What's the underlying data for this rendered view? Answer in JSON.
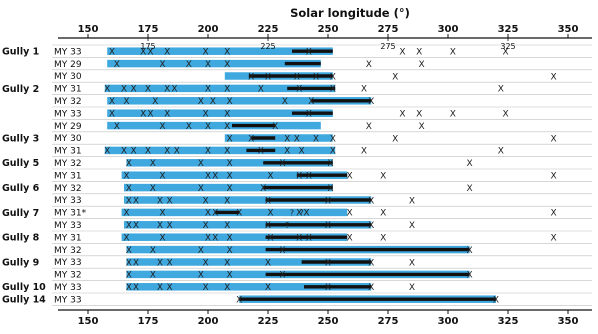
{
  "chart_data": {
    "type": "gantt",
    "title": "Solar longitude (°)",
    "xlim": [
      150,
      360
    ],
    "major_ticks": [
      "150",
      "175",
      "200",
      "225",
      "250",
      "275",
      "300",
      "325",
      "350"
    ],
    "minor_ticks": [
      "175",
      "225",
      "275",
      "325"
    ],
    "colors": {
      "monitoring": "#3fa8df",
      "activity": "#111111",
      "grid": "#bfbfbf",
      "axis": "#111111"
    },
    "rows": [
      {
        "gully": "Gully 1",
        "my": "MY 33",
        "blue": [
          158,
          252
        ],
        "black": [
          235,
          252
        ],
        "x": [
          160,
          173,
          176,
          183,
          199,
          208,
          242,
          281,
          288,
          302,
          324
        ]
      },
      {
        "gully": "",
        "my": "MY 29",
        "blue": [
          158,
          247
        ],
        "black": [
          232,
          247
        ],
        "x": [
          162,
          181,
          192,
          200,
          208,
          267,
          289
        ]
      },
      {
        "gully": "",
        "my": "MY 30",
        "blue": [
          207,
          252
        ],
        "black": [
          217,
          252
        ],
        "x": [
          218,
          225,
          237,
          245,
          252,
          278,
          344
        ]
      },
      {
        "gully": "Gully 2",
        "my": "MY 31",
        "blue": [
          157,
          253
        ],
        "black": [
          233,
          253
        ],
        "x": [
          158,
          165,
          169,
          175,
          183,
          186,
          200,
          208,
          222,
          238,
          252,
          265,
          322
        ]
      },
      {
        "gully": "",
        "my": "MY 32",
        "blue": [
          158,
          268
        ],
        "black": [
          243,
          268
        ],
        "x": [
          160,
          166,
          178,
          197,
          202,
          209,
          232,
          243,
          268
        ]
      },
      {
        "gully": "",
        "my": "MY 33",
        "blue": [
          158,
          252
        ],
        "black": [
          235,
          252
        ],
        "x": [
          160,
          173,
          176,
          183,
          199,
          208,
          242,
          281,
          288,
          302,
          324
        ]
      },
      {
        "gully": "",
        "my": "MY 29",
        "blue": [
          158,
          247
        ],
        "black": [
          210,
          228
        ],
        "x": [
          162,
          181,
          192,
          200,
          208,
          228,
          267,
          289
        ]
      },
      {
        "gully": "Gully 3",
        "my": "MY 30",
        "blue": [
          207,
          252
        ],
        "black": [
          218,
          228
        ],
        "x": [
          209,
          218,
          233,
          237,
          245,
          252,
          278,
          344
        ]
      },
      {
        "gully": "",
        "my": "MY 31",
        "blue": [
          157,
          253
        ],
        "black": [
          216,
          228
        ],
        "x": [
          158,
          165,
          169,
          175,
          183,
          187,
          200,
          208,
          222,
          233,
          239,
          252,
          265,
          322
        ]
      },
      {
        "gully": "Gully 5",
        "my": "MY 32",
        "blue": [
          166,
          252
        ],
        "black": [
          223,
          252
        ],
        "x": [
          167,
          177,
          197,
          209,
          231,
          251,
          309
        ]
      },
      {
        "gully": "",
        "my": "MY 31",
        "blue": [
          164,
          258
        ],
        "black": [
          237,
          258
        ],
        "x": [
          166,
          181,
          200,
          203,
          209,
          226,
          238,
          242,
          259,
          273,
          344
        ]
      },
      {
        "gully": "Gully 6",
        "my": "MY 32",
        "blue": [
          165,
          252
        ],
        "black": [
          223,
          252
        ],
        "x": [
          167,
          177,
          197,
          209,
          223,
          251,
          309
        ]
      },
      {
        "gully": "",
        "my": "MY 33",
        "blue": [
          165,
          268
        ],
        "black": [
          224,
          268
        ],
        "x": [
          167,
          170,
          180,
          184,
          199,
          208,
          225,
          250,
          268,
          285
        ]
      },
      {
        "gully": "Gully 7",
        "my": "MY 31*",
        "blue": [
          164,
          258
        ],
        "black": [
          203,
          213
        ],
        "x": [
          166,
          181,
          200,
          203,
          213,
          226,
          238,
          241,
          259,
          273,
          344
        ],
        "arrows": [
          235,
          239
        ]
      },
      {
        "gully": "",
        "my": "MY 33",
        "blue": [
          165,
          268
        ],
        "black": [
          224,
          268
        ],
        "x": [
          167,
          170,
          180,
          184,
          199,
          208,
          225,
          250,
          268,
          285
        ],
        "arrows": [
          233
        ]
      },
      {
        "gully": "Gully 8",
        "my": "MY 31",
        "blue": [
          164,
          258
        ],
        "black": [
          224,
          258
        ],
        "x": [
          166,
          181,
          200,
          203,
          209,
          226,
          238,
          242,
          259,
          273,
          344
        ]
      },
      {
        "gully": "",
        "my": "MY 32",
        "blue": [
          166,
          309
        ],
        "black": [
          224,
          309
        ],
        "x": [
          167,
          177,
          197,
          209,
          231,
          309
        ]
      },
      {
        "gully": "Gully 9",
        "my": "MY 33",
        "blue": [
          166,
          268
        ],
        "black": [
          239,
          268
        ],
        "x": [
          167,
          170,
          180,
          184,
          199,
          208,
          225,
          250,
          268,
          285
        ]
      },
      {
        "gully": "",
        "my": "MY 32",
        "blue": [
          166,
          309
        ],
        "black": [
          224,
          309
        ],
        "x": [
          167,
          177,
          197,
          209,
          231,
          309
        ]
      },
      {
        "gully": "Gully 10",
        "my": "MY 33",
        "blue": [
          166,
          268
        ],
        "black": [
          240,
          268
        ],
        "x": [
          167,
          170,
          180,
          184,
          199,
          208,
          225,
          250,
          268,
          285
        ]
      },
      {
        "gully": "Gully 14",
        "my": "MY 33",
        "blue": [
          213,
          320
        ],
        "black": [
          213,
          320
        ],
        "x": [
          213,
          320
        ]
      }
    ]
  }
}
